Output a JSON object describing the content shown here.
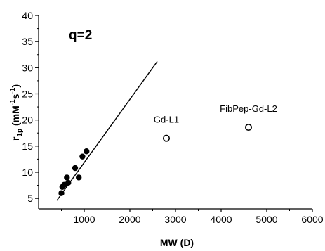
{
  "chart_data": {
    "type": "scatter",
    "title": "",
    "panel_label": "q=2",
    "xlabel": "MW (D)",
    "ylabel": {
      "base": "r",
      "sub": "1p",
      "units_prefix": " (mM",
      "exp1": "-1",
      "units_mid": "s",
      "exp2": "-1",
      "units_suffix": ")"
    },
    "xlim": [
      0,
      6000
    ],
    "ylim": [
      3,
      40
    ],
    "x_ticks": [
      1000,
      2000,
      3000,
      4000,
      5000,
      6000
    ],
    "x_tick_labels": [
      "1000",
      "2000",
      "3000",
      "4000",
      "5000",
      "6000"
    ],
    "y_ticks": [
      5,
      10,
      15,
      20,
      25,
      30,
      35,
      40
    ],
    "y_tick_labels": [
      "5",
      "10",
      "15",
      "20",
      "25",
      "30",
      "35",
      "40"
    ],
    "grid": false,
    "series": [
      {
        "style": "filled-circle",
        "points": [
          {
            "x": 500,
            "y": 6.0
          },
          {
            "x": 520,
            "y": 7.2
          },
          {
            "x": 560,
            "y": 7.6
          },
          {
            "x": 620,
            "y": 9.0
          },
          {
            "x": 650,
            "y": 8.0
          },
          {
            "x": 800,
            "y": 10.8
          },
          {
            "x": 880,
            "y": 9.0
          },
          {
            "x": 960,
            "y": 13.0
          },
          {
            "x": 1050,
            "y": 14.0
          }
        ]
      },
      {
        "style": "open-circle",
        "points": [
          {
            "x": 2800,
            "y": 16.5,
            "label": "Gd-L1"
          },
          {
            "x": 4600,
            "y": 18.6,
            "label": "FibPep-Gd-L2"
          }
        ]
      }
    ],
    "fit_line": {
      "x": [
        400,
        2600
      ],
      "y": [
        4.6,
        31.2
      ]
    }
  }
}
